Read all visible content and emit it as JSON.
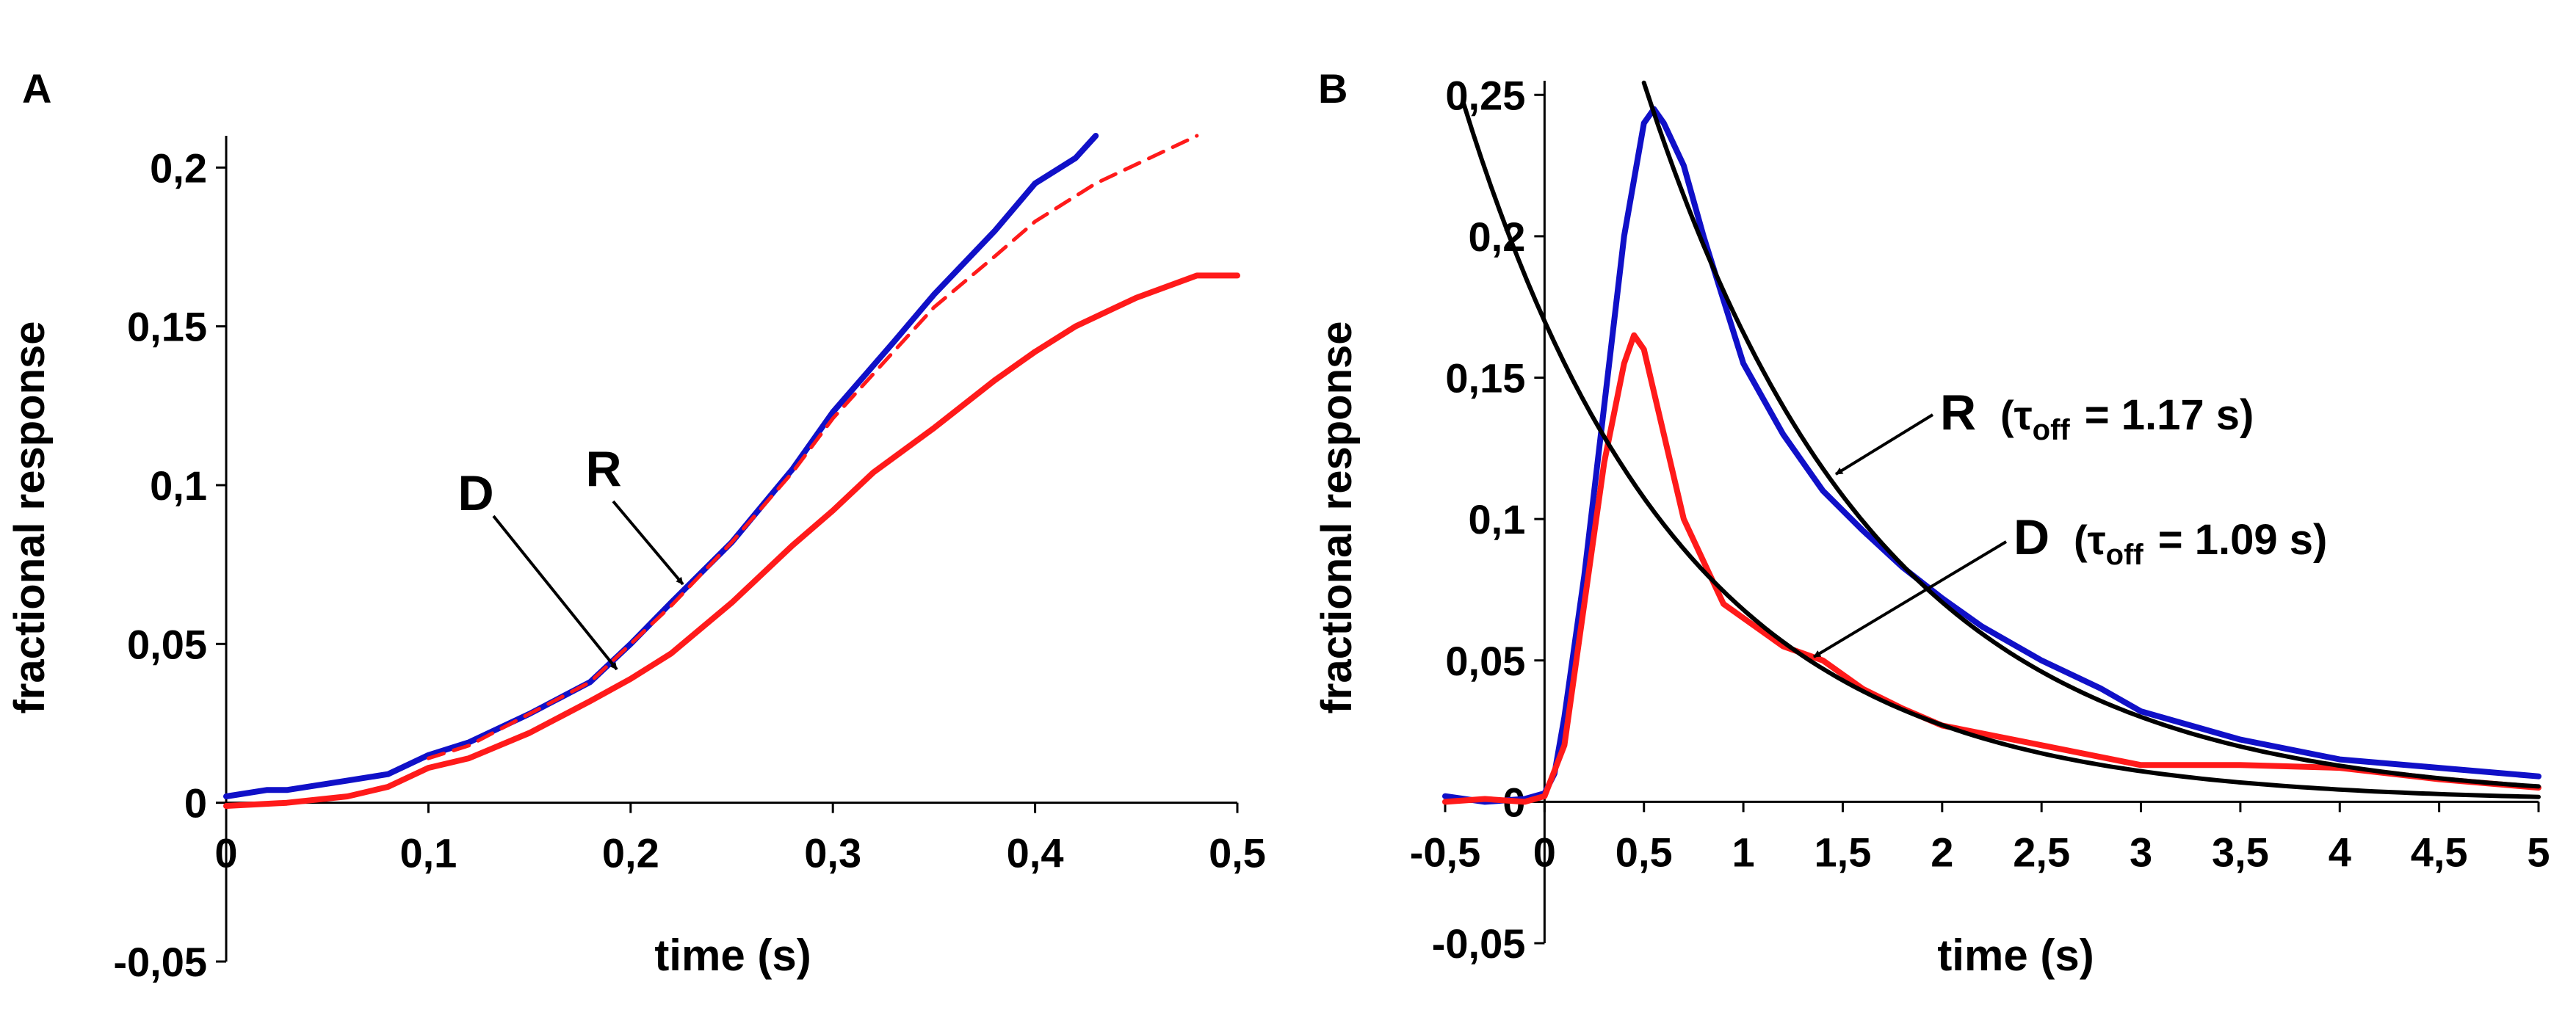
{
  "colors": {
    "blue": "#1010c8",
    "red": "#ff1a1a",
    "black": "#000000"
  },
  "chart_data": [
    {
      "panel_label": "A",
      "type": "line",
      "xlabel": "time (s)",
      "ylabel": "fractional response",
      "xlim": [
        0,
        0.5
      ],
      "ylim": [
        -0.05,
        0.21
      ],
      "xticks": [
        0,
        0.1,
        0.2,
        0.3,
        0.4,
        0.5
      ],
      "xtick_labels": [
        "0",
        "0,1",
        "0,2",
        "0,3",
        "0,4",
        "0,5"
      ],
      "yticks": [
        -0.05,
        0,
        0.05,
        0.1,
        0.15,
        0.2
      ],
      "ytick_labels": [
        "-0,05",
        "0",
        "0,05",
        "0,1",
        "0,15",
        "0,2"
      ],
      "series": [
        {
          "name": "R",
          "color": "#1010c8",
          "style": "solid",
          "x": [
            0,
            0.02,
            0.03,
            0.06,
            0.08,
            0.1,
            0.12,
            0.15,
            0.18,
            0.2,
            0.22,
            0.25,
            0.28,
            0.3,
            0.33,
            0.35,
            0.38,
            0.4,
            0.42,
            0.43
          ],
          "y": [
            0.002,
            0.004,
            0.004,
            0.007,
            0.009,
            0.015,
            0.019,
            0.028,
            0.038,
            0.05,
            0.063,
            0.082,
            0.105,
            0.123,
            0.145,
            0.16,
            0.18,
            0.195,
            0.203,
            0.21
          ]
        },
        {
          "name": "R (extrapolated)",
          "color": "#ff1a1a",
          "style": "dashed",
          "x": [
            0.1,
            0.12,
            0.15,
            0.18,
            0.2,
            0.22,
            0.25,
            0.28,
            0.3,
            0.33,
            0.35,
            0.38,
            0.4,
            0.43,
            0.46,
            0.48
          ],
          "y": [
            0.014,
            0.018,
            0.028,
            0.038,
            0.05,
            0.062,
            0.082,
            0.104,
            0.121,
            0.142,
            0.156,
            0.172,
            0.183,
            0.195,
            0.204,
            0.21
          ]
        },
        {
          "name": "D",
          "color": "#ff1a1a",
          "style": "solid",
          "x": [
            0,
            0.03,
            0.06,
            0.08,
            0.1,
            0.12,
            0.15,
            0.18,
            0.2,
            0.22,
            0.25,
            0.28,
            0.3,
            0.32,
            0.35,
            0.38,
            0.4,
            0.42,
            0.45,
            0.48,
            0.5
          ],
          "y": [
            -0.001,
            0.0,
            0.002,
            0.005,
            0.011,
            0.014,
            0.022,
            0.032,
            0.039,
            0.047,
            0.063,
            0.081,
            0.092,
            0.104,
            0.118,
            0.133,
            0.142,
            0.15,
            0.159,
            0.166,
            0.166
          ]
        }
      ],
      "annotations": [
        "D",
        "R"
      ]
    },
    {
      "panel_label": "B",
      "type": "line",
      "xlabel": "time (s)",
      "ylabel": "fractional response",
      "xlim": [
        -0.5,
        5
      ],
      "ylim": [
        -0.05,
        0.255
      ],
      "xticks": [
        -0.5,
        0,
        0.5,
        1,
        1.5,
        2,
        2.5,
        3,
        3.5,
        4,
        4.5,
        5
      ],
      "xtick_labels": [
        "-0,5",
        "0",
        "0,5",
        "1",
        "1,5",
        "2",
        "2,5",
        "3",
        "3,5",
        "4",
        "4,5",
        "5"
      ],
      "yticks": [
        -0.05,
        0,
        0.05,
        0.1,
        0.15,
        0.2,
        0.25
      ],
      "ytick_labels": [
        "-0,05",
        "0",
        "0,05",
        "0,1",
        "0,15",
        "0,2",
        "0,25"
      ],
      "series": [
        {
          "name": "R",
          "color": "#1010c8",
          "style": "solid",
          "x": [
            -0.5,
            -0.3,
            -0.1,
            0,
            0.05,
            0.1,
            0.2,
            0.3,
            0.4,
            0.5,
            0.55,
            0.6,
            0.7,
            0.8,
            1.0,
            1.2,
            1.4,
            1.6,
            1.8,
            2.0,
            2.2,
            2.5,
            2.8,
            3.0,
            3.5,
            4.0,
            4.5,
            5.0
          ],
          "y": [
            0.002,
            0.0,
            0.001,
            0.003,
            0.01,
            0.03,
            0.08,
            0.14,
            0.2,
            0.24,
            0.245,
            0.24,
            0.225,
            0.2,
            0.155,
            0.13,
            0.11,
            0.096,
            0.083,
            0.072,
            0.062,
            0.05,
            0.04,
            0.032,
            0.022,
            0.015,
            0.012,
            0.009
          ]
        },
        {
          "name": "D",
          "color": "#ff1a1a",
          "style": "solid",
          "x": [
            -0.5,
            -0.3,
            -0.1,
            0,
            0.1,
            0.2,
            0.3,
            0.4,
            0.45,
            0.5,
            0.6,
            0.7,
            0.8,
            0.9,
            1.0,
            1.2,
            1.4,
            1.6,
            1.8,
            2.0,
            2.5,
            3.0,
            3.5,
            4.0,
            4.5,
            5.0
          ],
          "y": [
            0.0,
            0.001,
            0.0,
            0.002,
            0.02,
            0.07,
            0.12,
            0.155,
            0.165,
            0.16,
            0.13,
            0.1,
            0.085,
            0.07,
            0.065,
            0.055,
            0.05,
            0.04,
            0.033,
            0.027,
            0.02,
            0.013,
            0.013,
            0.012,
            0.008,
            0.005
          ]
        },
        {
          "name": "R fit",
          "color": "#000000",
          "style": "solid",
          "model": "exponential",
          "A": 0.25,
          "t0": 0.52,
          "tau": 1.17,
          "x_start": 0.5,
          "x_end": 5
        },
        {
          "name": "D fit",
          "color": "#000000",
          "style": "solid",
          "model": "exponential",
          "A": 0.17,
          "t0": 0.0,
          "tau": 1.09,
          "x_start": -0.5,
          "x_end": 5
        }
      ],
      "annotations": [
        {
          "label": "R",
          "tau_symbol": "τ",
          "tau_sub": "off",
          "tau_value": "= 1.17 s"
        },
        {
          "label": "D",
          "tau_symbol": "τ",
          "tau_sub": "off",
          "tau_value": "= 1.09 s"
        }
      ]
    }
  ]
}
